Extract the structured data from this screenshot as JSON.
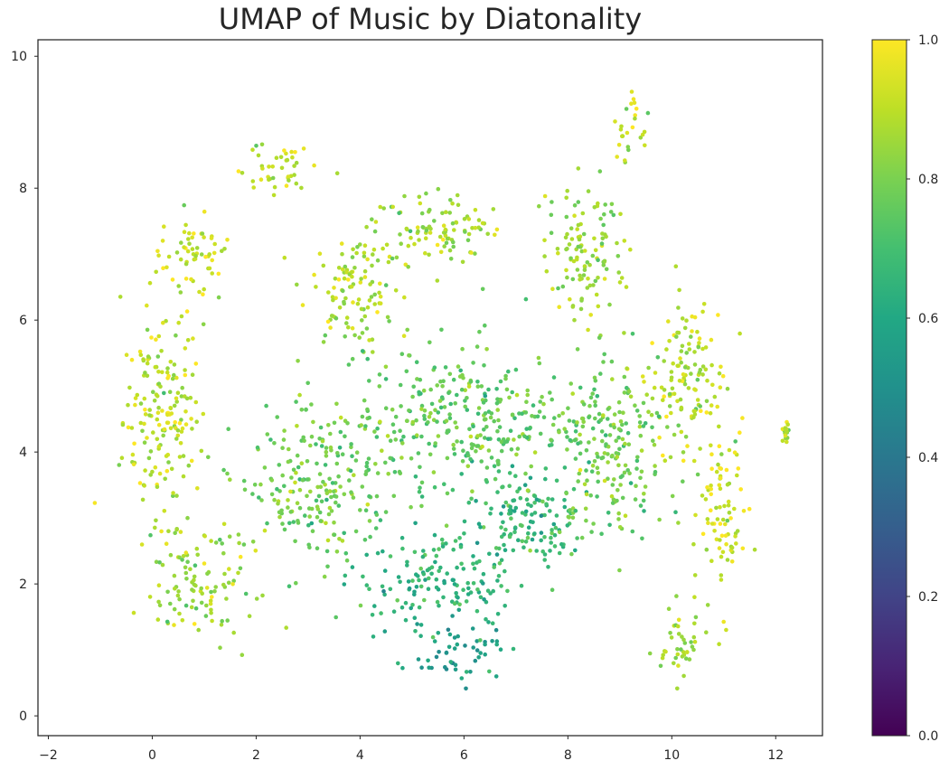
{
  "chart_data": {
    "type": "scatter",
    "title": "UMAP of Music by Diatonality",
    "xlabel": "",
    "ylabel": "",
    "xlim": [
      -2.2,
      12.9
    ],
    "ylim": [
      -0.3,
      10.25
    ],
    "xticks": [
      "−2",
      "0",
      "2",
      "4",
      "6",
      "8",
      "10",
      "12"
    ],
    "xtick_values": [
      -2,
      0,
      2,
      4,
      6,
      8,
      10,
      12
    ],
    "yticks": [
      "0",
      "2",
      "4",
      "6",
      "8",
      "10"
    ],
    "ytick_values": [
      0,
      2,
      4,
      6,
      8,
      10
    ],
    "grid": false,
    "colormap": "viridis",
    "colorbar": {
      "range": [
        0.0,
        1.0
      ],
      "ticks": [
        "0.0",
        "0.2",
        "0.4",
        "0.6",
        "0.8",
        "1.0"
      ],
      "tick_values": [
        0.0,
        0.2,
        0.4,
        0.6,
        0.8,
        1.0
      ]
    },
    "clusters": [
      {
        "x": 0.2,
        "y": 4.5,
        "sx": 0.7,
        "sy": 1.5,
        "diatonality": 0.9
      },
      {
        "x": 0.8,
        "y": 7.0,
        "sx": 0.6,
        "sy": 0.6,
        "diatonality": 0.92
      },
      {
        "x": 2.3,
        "y": 8.3,
        "sx": 0.7,
        "sy": 0.35,
        "diatonality": 0.9
      },
      {
        "x": 3.8,
        "y": 6.5,
        "sx": 0.8,
        "sy": 0.8,
        "diatonality": 0.88
      },
      {
        "x": 5.5,
        "y": 7.4,
        "sx": 1.2,
        "sy": 0.5,
        "diatonality": 0.86
      },
      {
        "x": 8.3,
        "y": 7.0,
        "sx": 0.7,
        "sy": 1.0,
        "diatonality": 0.84
      },
      {
        "x": 9.2,
        "y": 9.0,
        "sx": 0.3,
        "sy": 0.5,
        "diatonality": 0.9
      },
      {
        "x": 10.3,
        "y": 5.0,
        "sx": 0.7,
        "sy": 1.2,
        "diatonality": 0.9
      },
      {
        "x": 11.0,
        "y": 3.0,
        "sx": 0.4,
        "sy": 1.2,
        "diatonality": 0.92
      },
      {
        "x": 10.2,
        "y": 1.0,
        "sx": 0.5,
        "sy": 0.5,
        "diatonality": 0.85
      },
      {
        "x": 5.8,
        "y": 1.0,
        "sx": 0.8,
        "sy": 0.4,
        "diatonality": 0.56
      },
      {
        "x": 5.5,
        "y": 2.0,
        "sx": 1.4,
        "sy": 0.6,
        "diatonality": 0.64
      },
      {
        "x": 7.2,
        "y": 3.0,
        "sx": 1.0,
        "sy": 0.8,
        "diatonality": 0.68
      },
      {
        "x": 3.2,
        "y": 3.5,
        "sx": 1.3,
        "sy": 1.0,
        "diatonality": 0.78
      },
      {
        "x": 6.0,
        "y": 4.5,
        "sx": 1.8,
        "sy": 1.0,
        "diatonality": 0.76
      },
      {
        "x": 8.8,
        "y": 4.0,
        "sx": 1.0,
        "sy": 1.2,
        "diatonality": 0.78
      },
      {
        "x": 1.0,
        "y": 2.0,
        "sx": 0.9,
        "sy": 0.7,
        "diatonality": 0.85
      },
      {
        "x": 12.2,
        "y": 4.3,
        "sx": 0.05,
        "sy": 0.12,
        "diatonality": 0.9
      }
    ]
  }
}
